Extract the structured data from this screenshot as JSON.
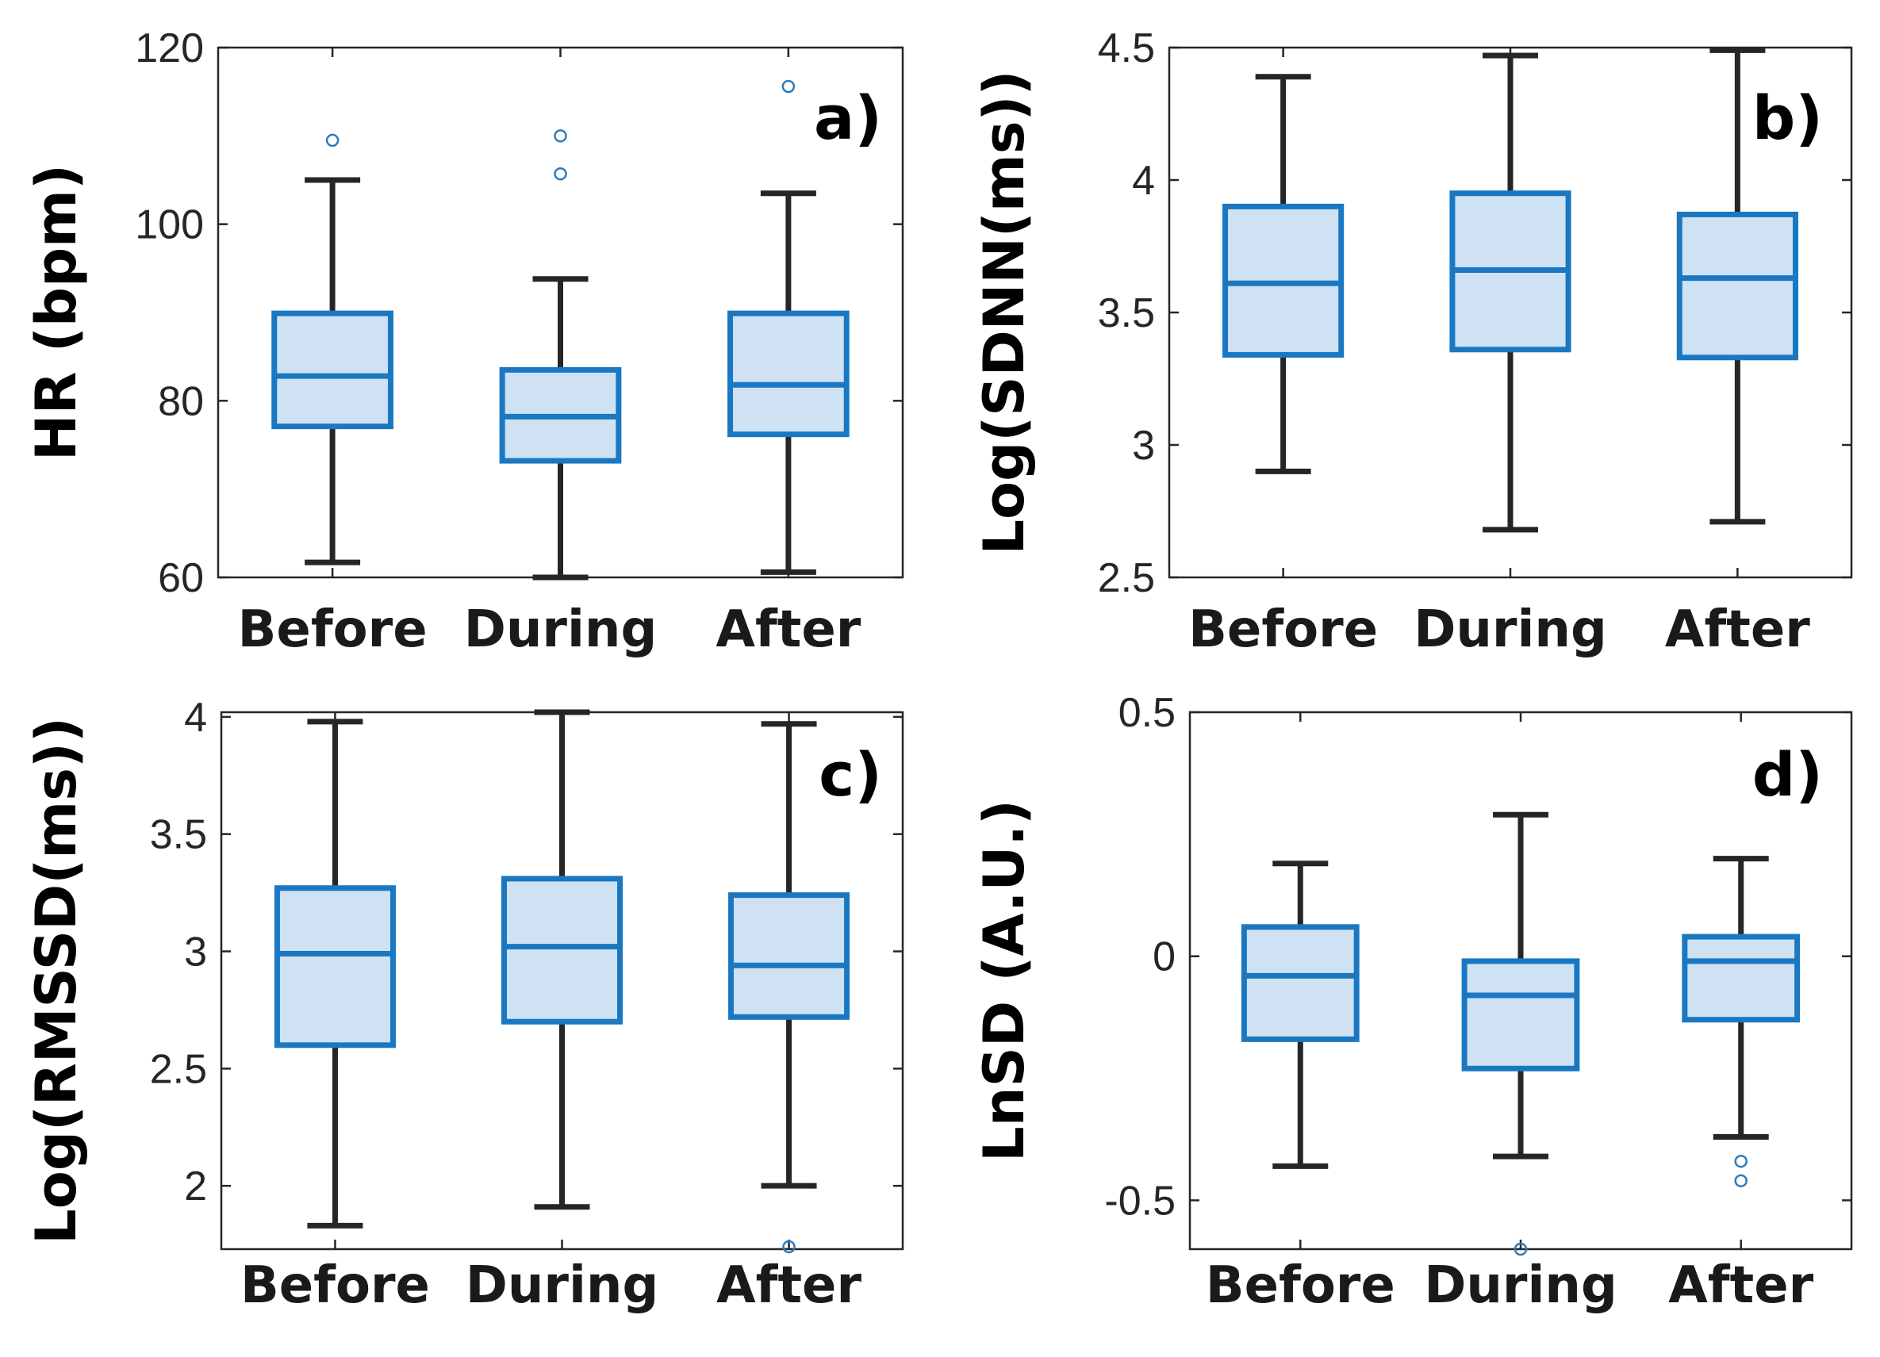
{
  "chart_data": [
    {
      "type": "box",
      "panel_label": "a)",
      "ylabel": "HR (bpm)",
      "categories": [
        "Before",
        "During",
        "After"
      ],
      "ylim": [
        60,
        120
      ],
      "yticks": [
        60,
        80,
        100,
        120
      ],
      "ytick_labels": [
        "60",
        "80",
        "100",
        "120"
      ],
      "boxes": [
        {
          "name": "Before",
          "whisker_low": 61.7,
          "q1": 77.1,
          "median": 82.8,
          "q3": 89.9,
          "whisker_high": 105.0,
          "outliers": [
            109.5
          ]
        },
        {
          "name": "During",
          "whisker_low": 60.0,
          "q1": 73.2,
          "median": 78.2,
          "q3": 83.5,
          "whisker_high": 93.8,
          "outliers": [
            110.0,
            105.7
          ]
        },
        {
          "name": "After",
          "whisker_low": 60.6,
          "q1": 76.2,
          "median": 81.8,
          "q3": 89.9,
          "whisker_high": 103.5,
          "outliers": [
            115.6
          ]
        }
      ]
    },
    {
      "type": "box",
      "panel_label": "b)",
      "ylabel": "Log(SDNN(ms))",
      "categories": [
        "Before",
        "During",
        "After"
      ],
      "ylim": [
        2.5,
        4.5
      ],
      "yticks": [
        2.5,
        3,
        3.5,
        4,
        4.5
      ],
      "ytick_labels": [
        "2.5",
        "3",
        "3.5",
        "4",
        "4.5"
      ],
      "boxes": [
        {
          "name": "Before",
          "whisker_low": 2.9,
          "q1": 3.34,
          "median": 3.61,
          "q3": 3.9,
          "whisker_high": 4.39,
          "outliers": []
        },
        {
          "name": "During",
          "whisker_low": 2.68,
          "q1": 3.36,
          "median": 3.66,
          "q3": 3.95,
          "whisker_high": 4.47,
          "outliers": []
        },
        {
          "name": "After",
          "whisker_low": 2.71,
          "q1": 3.33,
          "median": 3.63,
          "q3": 3.87,
          "whisker_high": 4.49,
          "outliers": []
        }
      ]
    },
    {
      "type": "box",
      "panel_label": "c)",
      "ylabel": "Log(RMSSD(ms))",
      "categories": [
        "Before",
        "During",
        "After"
      ],
      "ylim": [
        1.73,
        4.02
      ],
      "yticks": [
        2,
        2.5,
        3,
        3.5,
        4
      ],
      "ytick_labels": [
        "2",
        "2.5",
        "3",
        "3.5",
        "4"
      ],
      "boxes": [
        {
          "name": "Before",
          "whisker_low": 1.83,
          "q1": 2.6,
          "median": 2.99,
          "q3": 3.27,
          "whisker_high": 3.98,
          "outliers": []
        },
        {
          "name": "During",
          "whisker_low": 1.91,
          "q1": 2.7,
          "median": 3.02,
          "q3": 3.31,
          "whisker_high": 4.02,
          "outliers": []
        },
        {
          "name": "After",
          "whisker_low": 2.0,
          "q1": 2.72,
          "median": 2.94,
          "q3": 3.24,
          "whisker_high": 3.97,
          "outliers": [
            1.74
          ]
        }
      ]
    },
    {
      "type": "box",
      "panel_label": "d)",
      "ylabel": "LnSD (A.U.)",
      "categories": [
        "Before",
        "During",
        "After"
      ],
      "ylim": [
        -0.6,
        0.5
      ],
      "yticks": [
        -0.5,
        0,
        0.5
      ],
      "ytick_labels": [
        "-0.5",
        "0",
        "0.5"
      ],
      "boxes": [
        {
          "name": "Before",
          "whisker_low": -0.43,
          "q1": -0.17,
          "median": -0.04,
          "q3": 0.06,
          "whisker_high": 0.19,
          "outliers": []
        },
        {
          "name": "During",
          "whisker_low": -0.41,
          "q1": -0.23,
          "median": -0.08,
          "q3": -0.01,
          "whisker_high": 0.29,
          "outliers": [
            -0.6
          ]
        },
        {
          "name": "After",
          "whisker_low": -0.37,
          "q1": -0.13,
          "median": -0.01,
          "q3": 0.04,
          "whisker_high": 0.2,
          "outliers": [
            -0.42,
            -0.46
          ]
        }
      ]
    }
  ],
  "colors": {
    "box_edge": "#1a78c2",
    "box_fill": "#cfe2f3",
    "whisker": "#262626",
    "axes": "#262626",
    "outlier": "#2b7bbf"
  }
}
